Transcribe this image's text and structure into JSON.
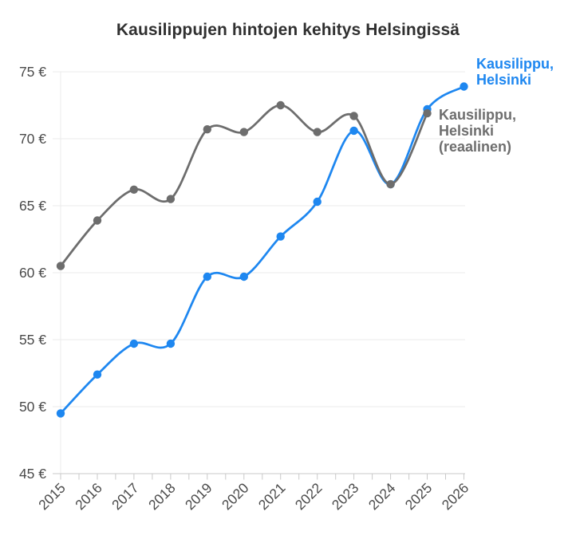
{
  "title": "Kausilippujen hintojen kehitys Helsingissä",
  "chart_data": {
    "type": "line",
    "title": "Kausilippujen hintojen kehitys Helsingissä",
    "x": [
      2015,
      2016,
      2017,
      2018,
      2019,
      2020,
      2021,
      2022,
      2023,
      2024,
      2025,
      2026
    ],
    "series": [
      {
        "name": "Kausilippu, Helsinki",
        "color": "#1e87f0",
        "values": [
          49.5,
          52.4,
          54.7,
          54.7,
          59.7,
          59.7,
          62.7,
          65.3,
          70.6,
          66.6,
          72.2,
          73.9
        ]
      },
      {
        "name": "Kausilippu, Helsinki (reaalinen)",
        "color": "#6d6d6d",
        "values": [
          60.5,
          63.9,
          66.2,
          65.5,
          70.7,
          70.5,
          72.5,
          70.5,
          71.7,
          66.6,
          71.9
        ]
      }
    ],
    "xlabel": "",
    "ylabel": "€",
    "ylim": [
      45,
      75.5
    ],
    "y_ticks": [
      45,
      50,
      55,
      60,
      65,
      70,
      75
    ],
    "y_tick_suffix": " €",
    "x_tick_labels": [
      "2015",
      "2016",
      "2017",
      "2018",
      "2019",
      "2020",
      "2021",
      "2022",
      "2023",
      "2024",
      "2025",
      "2026"
    ],
    "grid": "horizontal",
    "line_style": "smooth",
    "legend_position": "direct-labels-at-line-end"
  },
  "series_labels": {
    "nominal": {
      "lines": [
        "Kausilippu,",
        "Helsinki"
      ],
      "color": "#1e87f0"
    },
    "real": {
      "lines": [
        "Kausilippu,",
        "Helsinki",
        "(reaalinen)"
      ],
      "color": "#6e6e6e"
    }
  },
  "axis_style": {
    "tick_label_color": "#4a4a4a",
    "grid_color": "#ebebeb",
    "axis_color": "#c9c9c9",
    "title_color": "#303030"
  }
}
